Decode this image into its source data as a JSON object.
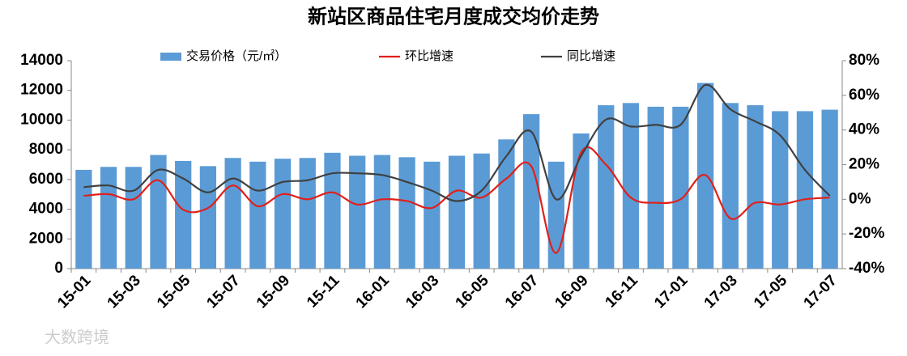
{
  "chart_data": {
    "type": "bar",
    "title": "新站区商品住宅月度成交均价走势",
    "watermark": "大数跨境",
    "categories": [
      "15-01",
      null,
      "15-03",
      null,
      "15-05",
      null,
      "15-07",
      null,
      "15-09",
      null,
      "15-11",
      null,
      "16-01",
      null,
      "16-03",
      null,
      "16-05",
      null,
      "16-07",
      null,
      "16-09",
      null,
      "16-11",
      null,
      "17-01",
      null,
      "17-03",
      null,
      "17-05",
      null,
      "17-07"
    ],
    "series": [
      {
        "name": "交易价格（元/㎡）",
        "type": "bar",
        "color": "#5b9bd5",
        "values": [
          6650,
          6850,
          6850,
          7650,
          7250,
          6900,
          7450,
          7200,
          7400,
          7450,
          7800,
          7600,
          7650,
          7500,
          7200,
          7600,
          7750,
          8700,
          10400,
          7200,
          9100,
          11000,
          11150,
          10900,
          10900,
          12500,
          11150,
          11000,
          10600,
          10600,
          10700
        ]
      },
      {
        "name": "环比增速",
        "type": "line",
        "axis": "y2",
        "color": "#e0201b",
        "values": [
          2,
          3,
          0,
          11,
          -6,
          -5,
          8,
          -4,
          3,
          0,
          4,
          -3,
          0,
          -1,
          -5,
          5,
          1,
          12,
          19,
          -31,
          27,
          20,
          1,
          -2,
          0,
          14,
          -11,
          -2,
          -3,
          0,
          1
        ]
      },
      {
        "name": "同比增速",
        "type": "line",
        "axis": "y2",
        "color": "#404040",
        "values": [
          7,
          8,
          5,
          17,
          12,
          4,
          12,
          5,
          10,
          11,
          15,
          15,
          14,
          10,
          5,
          -1,
          5,
          25,
          39,
          0,
          25,
          46,
          42,
          43,
          43,
          66,
          52,
          45,
          37,
          17,
          2
        ]
      }
    ],
    "ylim": [
      0,
      14000
    ],
    "yticks": [
      0,
      2000,
      4000,
      6000,
      8000,
      10000,
      12000,
      14000
    ],
    "y2lim": [
      -40,
      80
    ],
    "y2ticks": [
      {
        "value": -40,
        "label": "-40%"
      },
      {
        "value": -20,
        "label": "-20%"
      },
      {
        "value": 0,
        "label": "0%"
      },
      {
        "value": 20,
        "label": "20%"
      },
      {
        "value": 40,
        "label": "40%"
      },
      {
        "value": 60,
        "label": "60%"
      },
      {
        "value": 80,
        "label": "80%"
      }
    ],
    "grid": false,
    "legend": "top"
  }
}
